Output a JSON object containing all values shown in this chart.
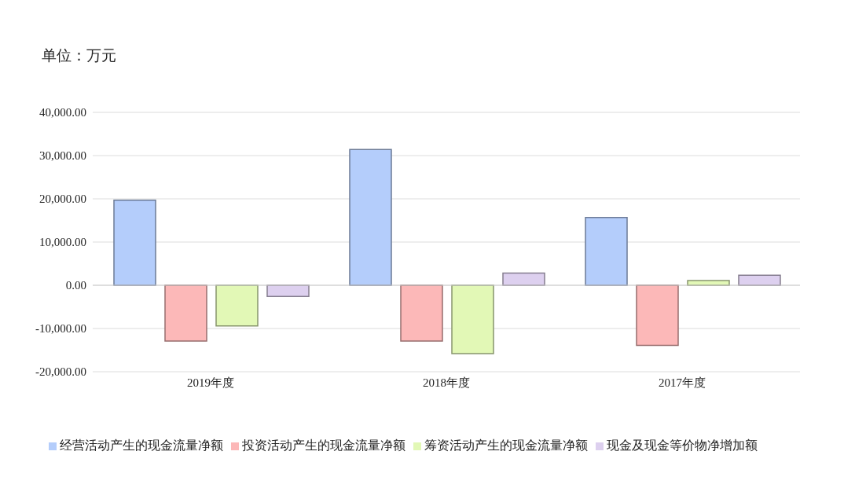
{
  "chart_data": {
    "type": "bar",
    "title": "单位：万元",
    "categories": [
      "2019年度",
      "2018年度",
      "2017年度"
    ],
    "series": [
      {
        "name": "经营活动产生的现金流量净额",
        "color": "#b4cdfb",
        "values": [
          19700,
          31400,
          15700
        ]
      },
      {
        "name": "投资活动产生的现金流量净额",
        "color": "#fcb8b8",
        "values": [
          -12900,
          -12900,
          -13900
        ]
      },
      {
        "name": "筹资活动产生的现金流量净额",
        "color": "#e2f8b6",
        "values": [
          -9400,
          -15800,
          1100
        ]
      },
      {
        "name": "现金及现金等价物净增加额",
        "color": "#ddd0ef",
        "values": [
          -2600,
          2800,
          2300
        ]
      }
    ],
    "ylim": [
      -20000,
      40000
    ],
    "yticks": [
      {
        "value": -20000,
        "label": "-20,000.00"
      },
      {
        "value": -10000,
        "label": "-10,000.00"
      },
      {
        "value": 0,
        "label": "0.00"
      },
      {
        "value": 10000,
        "label": "10,000.00"
      },
      {
        "value": 20000,
        "label": "20,000.00"
      },
      {
        "value": 30000,
        "label": "30,000.00"
      },
      {
        "value": 40000,
        "label": "40,000.00"
      }
    ],
    "grid": "y",
    "legend": "bottom"
  }
}
